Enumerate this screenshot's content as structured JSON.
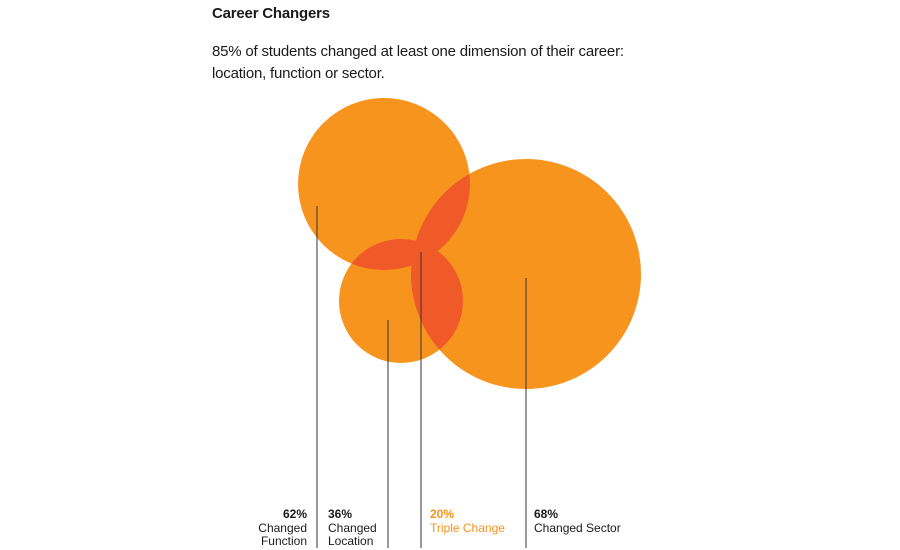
{
  "title": "Career Changers",
  "subtitle": "85% of students changed at least one dimension of their career: location, function or sector.",
  "colors": {
    "circle": "#f7941e",
    "overlap": "#f05a28",
    "highlight": "#f7941e",
    "text": "#1a1a1a",
    "leader": "#333333"
  },
  "chart_data": {
    "type": "venn",
    "sets": [
      {
        "id": "function",
        "value": 62,
        "value_label": "62%",
        "label_lines": [
          "Changed",
          "Function"
        ]
      },
      {
        "id": "location",
        "value": 36,
        "value_label": "36%",
        "label_lines": [
          "Changed",
          "Location"
        ]
      },
      {
        "id": "triple",
        "value": 20,
        "value_label": "20%",
        "label_lines": [
          "Triple Change"
        ],
        "highlight": true
      },
      {
        "id": "sector",
        "value": 68,
        "value_label": "68%",
        "label_lines": [
          "Changed Sector"
        ]
      }
    ]
  }
}
